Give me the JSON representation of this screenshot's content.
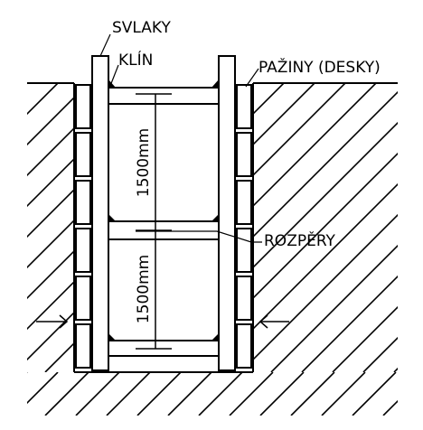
{
  "labels": {
    "svlaky": "SVLAKY",
    "klin": "KLÍN",
    "paziny": "PAŽINY (DESKY)",
    "rozpery": "ROZPĚRY"
  },
  "dimensions": {
    "upper": "1500mm",
    "lower": "1500mm"
  },
  "colors": {
    "line": "#000000",
    "background": "#ffffff"
  }
}
